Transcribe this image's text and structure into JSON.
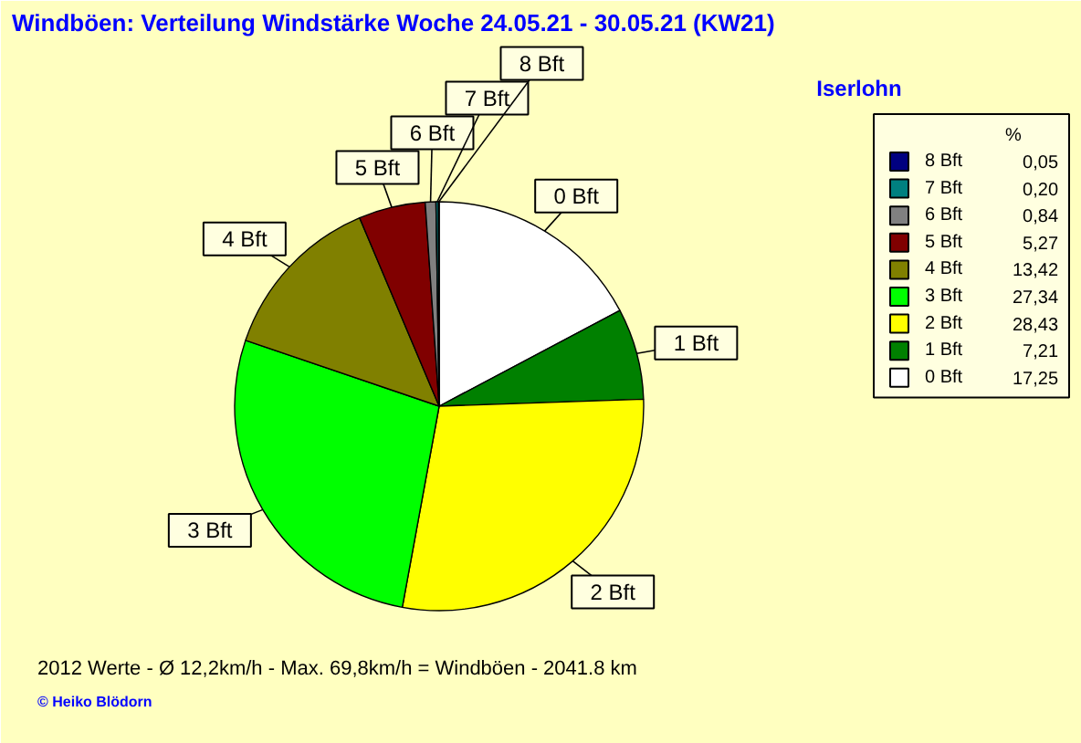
{
  "chart_data": {
    "type": "pie",
    "title": "Windböen: Verteilung Windstärke  Woche 24.05.21 - 30.05.21 (KW21)",
    "subtitle": "Iserlohn",
    "legend_title": "%",
    "legend": "top right",
    "categories": [
      "0 Bft",
      "1 Bft",
      "2 Bft",
      "3 Bft",
      "4 Bft",
      "5 Bft",
      "6 Bft",
      "7 Bft",
      "8 Bft"
    ],
    "values": [
      17.25,
      7.21,
      28.43,
      27.34,
      13.42,
      5.27,
      0.84,
      0.2,
      0.05
    ],
    "value_labels": [
      "17,25",
      "7,21",
      "28,43",
      "27,34",
      "13,42",
      "5,27",
      "0,84",
      "0,20",
      "0,05"
    ],
    "colors": [
      "#ffffff",
      "#008000",
      "#ffff00",
      "#00ff00",
      "#808000",
      "#800000",
      "#808080",
      "#008080",
      "#000080"
    ],
    "annotations": [
      "2012 Werte   -   Ø 12,2km/h   -   Max. 69,8km/h = Windböen   -   2041.8 km",
      "© Heiko Blödorn"
    ]
  }
}
